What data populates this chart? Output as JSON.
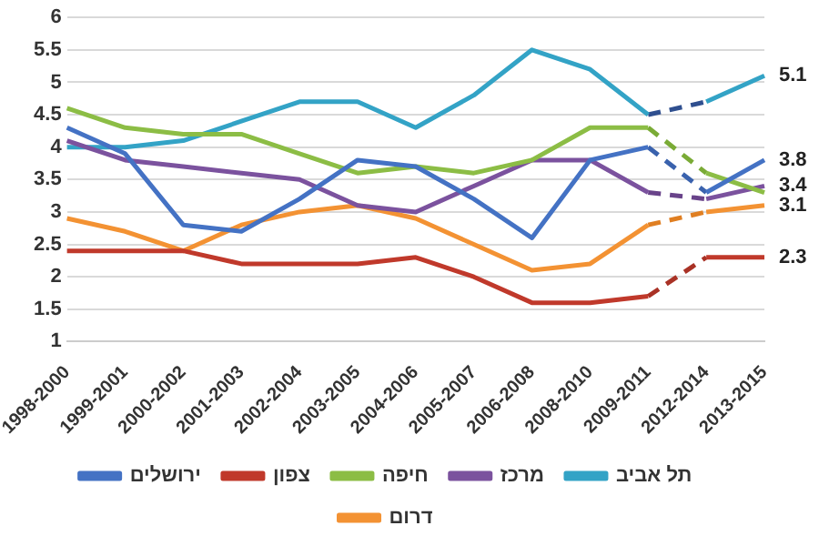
{
  "chart_data": {
    "type": "line",
    "categories": [
      "1998-2000",
      "1999-2001",
      "2000-2002",
      "2001-2003",
      "2002-2004",
      "2003-2005",
      "2004-2006",
      "2005-2007",
      "2006-2008",
      "2008-2010",
      "2009-2011",
      "2012-2014",
      "2013-2015"
    ],
    "ylim": [
      1,
      6
    ],
    "yticks": [
      1,
      1.5,
      2,
      2.5,
      3,
      3.5,
      4,
      4.5,
      5,
      5.5,
      6
    ],
    "grid": "y",
    "legend": "bottom",
    "marker": "none",
    "line_style": "solid",
    "series": [
      {
        "name": "ירושלים",
        "color": "#4472c4",
        "values": [
          4.3,
          3.9,
          2.8,
          2.7,
          3.2,
          3.8,
          3.7,
          3.2,
          2.6,
          3.8,
          4.0,
          3.3,
          3.8
        ],
        "value_labels": [
          null,
          null,
          null,
          null,
          null,
          null,
          null,
          null,
          null,
          null,
          null,
          null,
          "3.8"
        ]
      },
      {
        "name": "צפון",
        "color": "#c0392b",
        "values": [
          2.4,
          2.4,
          2.4,
          2.2,
          2.2,
          2.2,
          2.3,
          2.0,
          1.6,
          1.6,
          1.7,
          2.3,
          2.3
        ],
        "value_labels": [
          null,
          null,
          null,
          null,
          null,
          null,
          null,
          null,
          null,
          null,
          null,
          null,
          "2.3"
        ]
      },
      {
        "name": "חיפה",
        "color": "#8cbd45",
        "values": [
          4.6,
          4.3,
          4.2,
          4.2,
          3.9,
          3.6,
          3.7,
          3.6,
          3.8,
          4.3,
          4.3,
          3.6,
          3.3
        ]
      },
      {
        "name": "מרכז",
        "color": "#7b529e",
        "values": [
          4.1,
          3.8,
          3.7,
          3.6,
          3.5,
          3.1,
          3.0,
          3.4,
          3.8,
          3.8,
          3.3,
          3.2,
          3.4
        ],
        "value_labels": [
          null,
          null,
          null,
          null,
          null,
          null,
          null,
          null,
          null,
          null,
          null,
          null,
          "3.4"
        ]
      },
      {
        "name": "תל אביב",
        "color": "#33a3c6",
        "values": [
          4.0,
          4.0,
          4.1,
          4.4,
          4.7,
          4.7,
          4.3,
          4.8,
          5.5,
          5.2,
          4.5,
          4.7,
          5.1
        ],
        "value_labels": [
          null,
          null,
          null,
          null,
          null,
          null,
          null,
          null,
          null,
          null,
          null,
          null,
          "5.1"
        ]
      },
      {
        "name": "דרום",
        "color": "#f39233",
        "values": [
          2.9,
          2.7,
          2.4,
          2.8,
          3.0,
          3.1,
          2.9,
          2.5,
          2.1,
          2.2,
          2.8,
          3.0,
          3.1
        ],
        "value_labels": [
          null,
          null,
          null,
          null,
          null,
          null,
          null,
          null,
          null,
          null,
          null,
          null,
          "3.1"
        ]
      },
      {
        "color": "#3a62ad",
        "line_style": "dashed",
        "values": [
          null,
          null,
          null,
          null,
          null,
          null,
          null,
          null,
          null,
          null,
          4.0,
          3.3,
          null
        ]
      },
      {
        "color": "#a93226",
        "line_style": "dashed",
        "values": [
          null,
          null,
          null,
          null,
          null,
          null,
          null,
          null,
          null,
          null,
          1.7,
          2.3,
          null
        ]
      },
      {
        "color": "#7aab36",
        "line_style": "dashed",
        "values": [
          null,
          null,
          null,
          null,
          null,
          null,
          null,
          null,
          null,
          null,
          4.3,
          3.6,
          null
        ]
      },
      {
        "color": "#69438a",
        "line_style": "dashed",
        "values": [
          null,
          null,
          null,
          null,
          null,
          null,
          null,
          null,
          null,
          null,
          3.3,
          3.2,
          null
        ]
      },
      {
        "color": "#2f4f8f",
        "line_style": "dashed",
        "values": [
          null,
          null,
          null,
          null,
          null,
          null,
          null,
          null,
          null,
          null,
          4.5,
          4.7,
          null
        ]
      },
      {
        "color": "#e07f22",
        "line_style": "dashed",
        "values": [
          null,
          null,
          null,
          null,
          null,
          null,
          null,
          null,
          null,
          null,
          2.8,
          3.0,
          null
        ]
      }
    ]
  }
}
